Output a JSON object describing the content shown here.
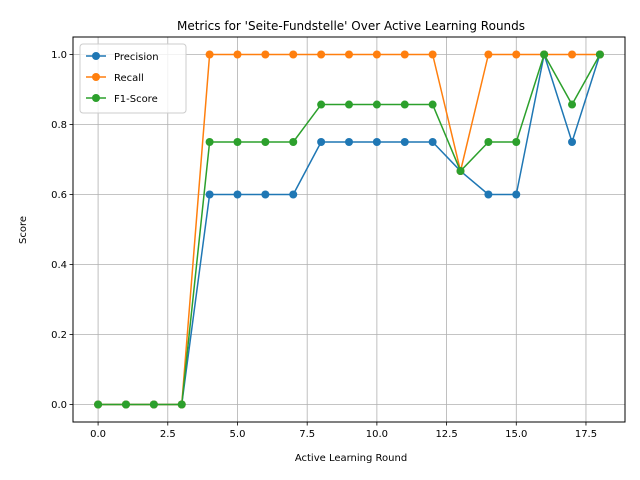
{
  "chart_data": {
    "type": "line",
    "title": "Metrics for 'Seite-Fundstelle' Over Active Learning Rounds",
    "xlabel": "Active Learning Round",
    "ylabel": "Score",
    "xlim": [
      -0.9,
      18.9
    ],
    "ylim": [
      -0.05,
      1.05
    ],
    "xticks": [
      0,
      2.5,
      5,
      7.5,
      10,
      12.5,
      15,
      17.5
    ],
    "xtick_labels": [
      "0.0",
      "2.5",
      "5.0",
      "7.5",
      "10.0",
      "12.5",
      "15.0",
      "17.5"
    ],
    "yticks": [
      0,
      0.2,
      0.4,
      0.6,
      0.8,
      1.0
    ],
    "ytick_labels": [
      "0.0",
      "0.2",
      "0.4",
      "0.6",
      "0.8",
      "1.0"
    ],
    "grid": true,
    "legend_position": "upper-left",
    "x": [
      0,
      1,
      2,
      3,
      4,
      5,
      6,
      7,
      8,
      9,
      10,
      11,
      12,
      13,
      14,
      15,
      16,
      17,
      18
    ],
    "series": [
      {
        "name": "Precision",
        "color": "#1f77b4",
        "values": [
          0,
          0,
          0,
          0,
          0.6,
          0.6,
          0.6,
          0.6,
          0.75,
          0.75,
          0.75,
          0.75,
          0.75,
          0.667,
          0.6,
          0.6,
          1.0,
          0.75,
          1.0
        ]
      },
      {
        "name": "Recall",
        "color": "#ff7f0e",
        "values": [
          0,
          0,
          0,
          0,
          1.0,
          1.0,
          1.0,
          1.0,
          1.0,
          1.0,
          1.0,
          1.0,
          1.0,
          0.667,
          1.0,
          1.0,
          1.0,
          1.0,
          1.0
        ]
      },
      {
        "name": "F1-Score",
        "color": "#2ca02c",
        "values": [
          0,
          0,
          0,
          0,
          0.75,
          0.75,
          0.75,
          0.75,
          0.857,
          0.857,
          0.857,
          0.857,
          0.857,
          0.667,
          0.75,
          0.75,
          1.0,
          0.857,
          1.0
        ]
      }
    ]
  }
}
